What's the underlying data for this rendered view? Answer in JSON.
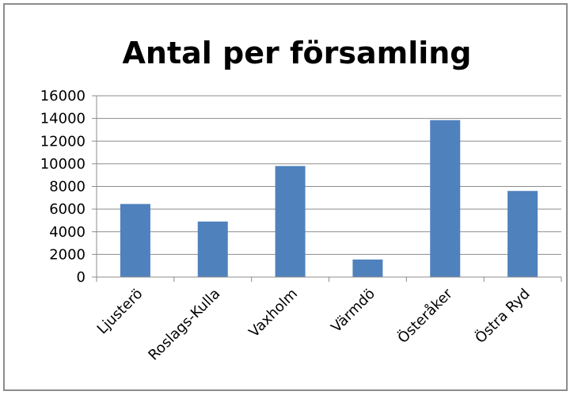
{
  "chart_data": {
    "type": "bar",
    "title": "Antal per församling",
    "categories": [
      "Ljusterö",
      "Roslags-Kulla",
      "Vaxholm",
      "Värmdö",
      "Österåker",
      "Östra Ryd"
    ],
    "series": [
      {
        "values": [
          6450,
          4900,
          9800,
          1550,
          13850,
          7600
        ]
      }
    ],
    "ylim": [
      0,
      16000
    ],
    "yticks": [
      0,
      2000,
      4000,
      6000,
      8000,
      10000,
      12000,
      14000,
      16000
    ],
    "grid": true,
    "legend": "none",
    "bar_color": "#4f81bd",
    "grid_color": "#8c8c8c"
  }
}
